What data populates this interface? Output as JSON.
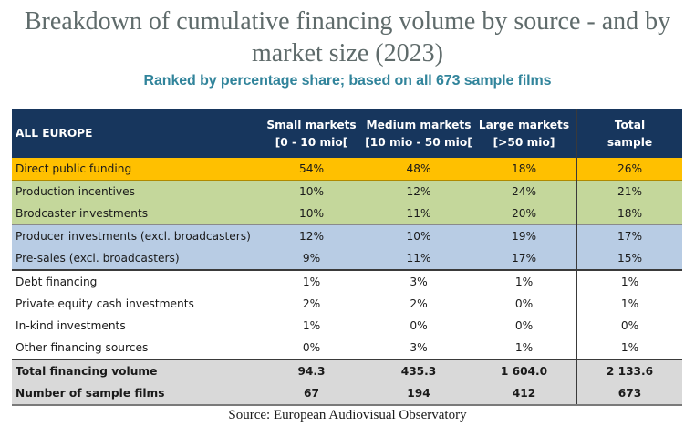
{
  "title": "Breakdown of cumulative financing volume by source - and by market size (2023)",
  "subtitle": "Ranked by percentage share; based on all 673 sample films",
  "colors": {
    "header_bg": "#17365d",
    "subtitle": "#31849b",
    "highlight_orange": "#ffc000",
    "highlight_green": "#c4d79b",
    "highlight_blue": "#b8cce4",
    "totals_grey": "#d9d9d9"
  },
  "table": {
    "headers": [
      {
        "line1": "ALL EUROPE",
        "line2": ""
      },
      {
        "line1": "Small markets",
        "line2": "[0 - 10 mio["
      },
      {
        "line1": "Medium markets",
        "line2": "[10 mio - 50 mio["
      },
      {
        "line1": "Large markets",
        "line2": "[>50 mio]"
      },
      {
        "line1": "Total",
        "line2": "sample"
      }
    ],
    "rows": [
      {
        "label": "Direct public funding",
        "small": "54%",
        "medium": "48%",
        "large": "18%",
        "total": "26%"
      },
      {
        "label": "Production incentives",
        "small": "10%",
        "medium": "12%",
        "large": "24%",
        "total": "21%"
      },
      {
        "label": "Brodcaster investments",
        "small": "10%",
        "medium": "11%",
        "large": "20%",
        "total": "18%"
      },
      {
        "label": "Producer investments (excl. broadcasters)",
        "small": "12%",
        "medium": "10%",
        "large": "19%",
        "total": "17%"
      },
      {
        "label": "Pre-sales (excl. broadcasters)",
        "small": "9%",
        "medium": "11%",
        "large": "17%",
        "total": "15%"
      },
      {
        "label": "Debt financing",
        "small": "1%",
        "medium": "3%",
        "large": "1%",
        "total": "1%"
      },
      {
        "label": "Private equity cash investments",
        "small": "2%",
        "medium": "2%",
        "large": "0%",
        "total": "1%"
      },
      {
        "label": "In-kind investments",
        "small": "1%",
        "medium": "0%",
        "large": "0%",
        "total": "0%"
      },
      {
        "label": "Other financing sources",
        "small": "0%",
        "medium": "3%",
        "large": "1%",
        "total": "1%"
      }
    ],
    "totals": [
      {
        "label": "Total financing volume",
        "small": "94.3",
        "medium": "435.3",
        "large": "1 604.0",
        "total": "2 133.6"
      },
      {
        "label": "Number of sample films",
        "small": "67",
        "medium": "194",
        "large": "412",
        "total": "673"
      }
    ]
  },
  "source": "Source: European Audiovisual Observatory"
}
